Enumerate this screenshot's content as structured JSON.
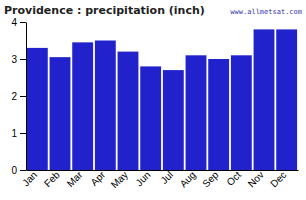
{
  "chart_data": {
    "type": "bar",
    "title": "Providence : precipitation (inch)",
    "categories": [
      "Jan",
      "Feb",
      "Mar",
      "Apr",
      "May",
      "Jun",
      "Jul",
      "Aug",
      "Sep",
      "Oct",
      "Nov",
      "Dec"
    ],
    "values": [
      3.3,
      3.05,
      3.45,
      3.5,
      3.2,
      2.8,
      2.7,
      3.1,
      3.0,
      3.1,
      3.8,
      3.8
    ],
    "color": "#2222cc",
    "ylim": [
      0,
      4
    ],
    "yticks": [
      0,
      1,
      2,
      3,
      4
    ],
    "annotations": [
      "www.allmetsat.com"
    ]
  }
}
